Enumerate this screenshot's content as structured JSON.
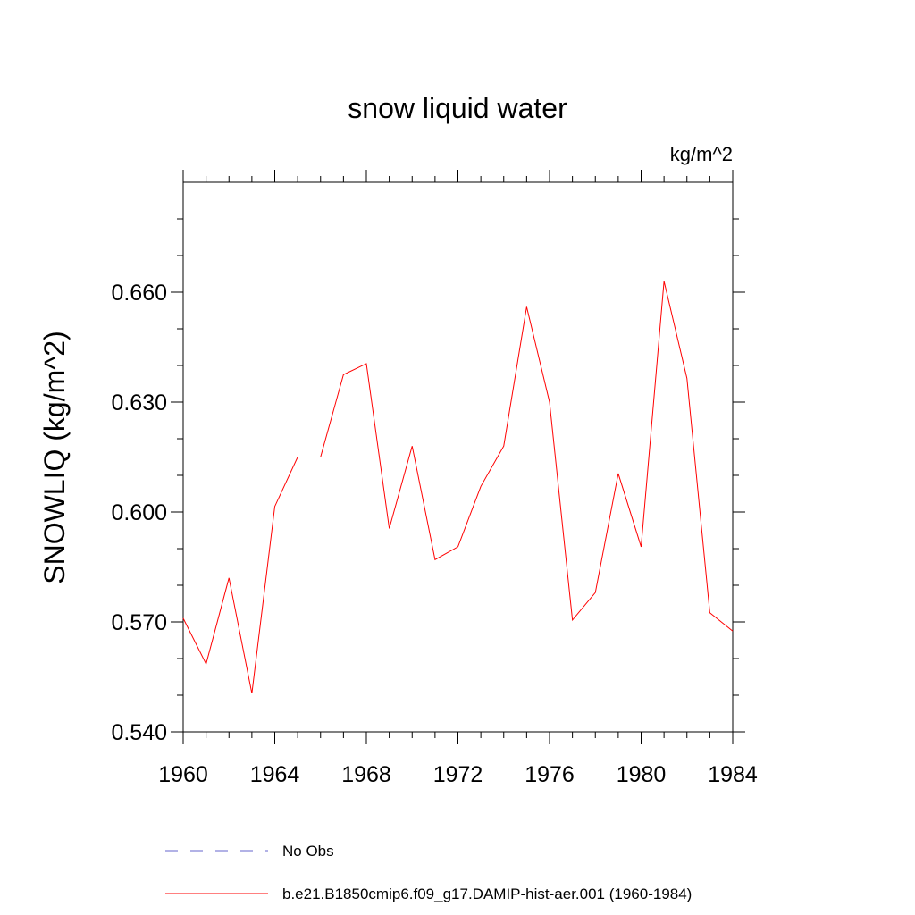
{
  "chart_data": {
    "type": "line",
    "title": "snow liquid water",
    "units_label": "kg/m^2",
    "ylabel": "SNOWLIQ  (kg/m^2)",
    "xlabel": "",
    "xlim": [
      1960,
      1984
    ],
    "ylim": [
      0.54,
      0.69
    ],
    "x_ticks": [
      1960,
      1964,
      1968,
      1972,
      1976,
      1980,
      1984
    ],
    "x_tick_labels": [
      "1960",
      "1964",
      "1968",
      "1972",
      "1976",
      "1980",
      "1984"
    ],
    "y_ticks": [
      0.54,
      0.57,
      0.6,
      0.63,
      0.66
    ],
    "y_tick_labels": [
      "0.540",
      "0.570",
      "0.600",
      "0.630",
      "0.660"
    ],
    "grid": false,
    "legend_position": "bottom",
    "series": [
      {
        "name": "b.e21.B1850cmip6.f09_g17.DAMIP-hist-aer.001 (1960-1984)",
        "color": "#ff0000",
        "style": "solid",
        "x": [
          1960,
          1961,
          1962,
          1963,
          1964,
          1965,
          1966,
          1967,
          1968,
          1969,
          1970,
          1971,
          1972,
          1973,
          1974,
          1975,
          1976,
          1977,
          1978,
          1979,
          1980,
          1981,
          1982,
          1983,
          1984
        ],
        "y": [
          0.571,
          0.5585,
          0.582,
          0.5505,
          0.6015,
          0.615,
          0.615,
          0.6375,
          0.6405,
          0.5955,
          0.618,
          0.587,
          0.5905,
          0.607,
          0.618,
          0.656,
          0.63,
          0.5705,
          0.578,
          0.6105,
          0.5905,
          0.663,
          0.6365,
          0.5725,
          0.5675
        ]
      }
    ],
    "legend": [
      {
        "label": "No Obs",
        "color": "#6666cc",
        "style": "dashed"
      },
      {
        "label": "b.e21.B1850cmip6.f09_g17.DAMIP-hist-aer.001 (1960-1984)",
        "color": "#ff0000",
        "style": "solid"
      }
    ]
  }
}
